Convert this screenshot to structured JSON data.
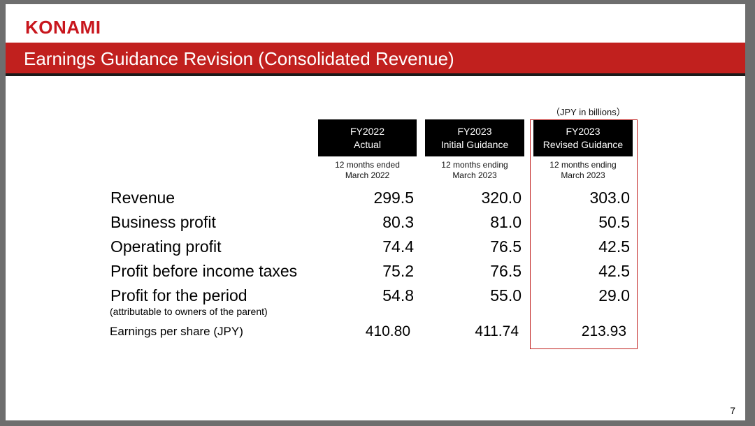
{
  "header": {
    "logo": "KONAMI",
    "title": "Earnings Guidance Revision (Consolidated Revenue)"
  },
  "table": {
    "unit": "（JPY in billions）",
    "columns": [
      {
        "line1": "FY2022",
        "line2": "Actual",
        "period1": "12 months ended",
        "period2": "March 2022"
      },
      {
        "line1": "FY2023",
        "line2": "Initial Guidance",
        "period1": "12 months ending",
        "period2": "March 2023"
      },
      {
        "line1": "FY2023",
        "line2": "Revised Guidance",
        "period1": "12 months ending",
        "period2": "March 2023"
      }
    ],
    "rows": [
      {
        "label": "Revenue",
        "values": [
          "299.5",
          "320.0",
          "303.0"
        ]
      },
      {
        "label": "Business profit",
        "values": [
          "80.3",
          "81.0",
          "50.5"
        ]
      },
      {
        "label": "Operating profit",
        "values": [
          "74.4",
          "76.5",
          "42.5"
        ]
      },
      {
        "label": "Profit before income taxes",
        "values": [
          "75.2",
          "76.5",
          "42.5"
        ]
      },
      {
        "label": "Profit for the period",
        "values": [
          "54.8",
          "55.0",
          "29.0"
        ]
      }
    ],
    "profit_note": "(attributable to owners of the parent)",
    "eps": {
      "label": "Earnings per share (JPY)",
      "values": [
        "410.80",
        "411.74",
        "213.93"
      ]
    }
  },
  "footer": {
    "page_number": "7"
  },
  "colors": {
    "brand_red": "#c1201e",
    "logo_red": "#c8161d"
  }
}
